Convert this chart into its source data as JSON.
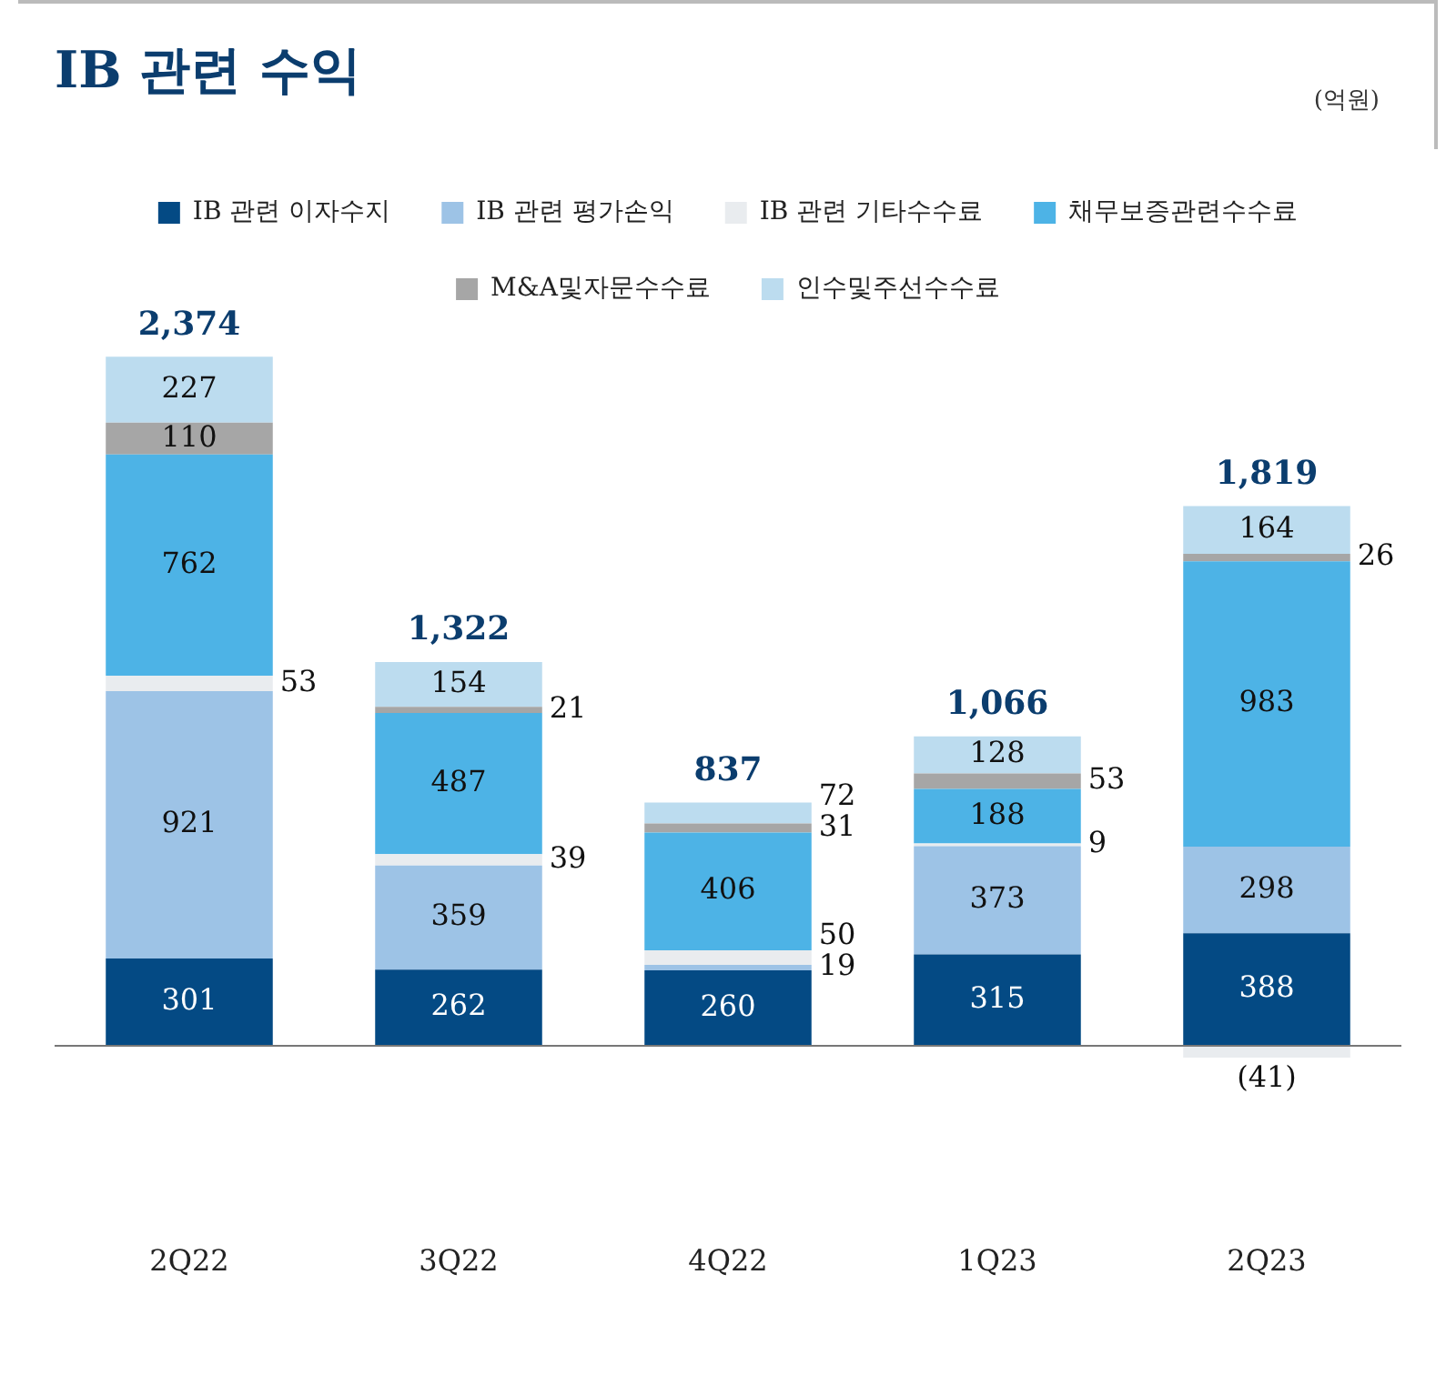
{
  "chart_data": {
    "type": "bar",
    "title": "IB 관련 수익",
    "annotations": [
      "(억원)"
    ],
    "categories": [
      "2Q22",
      "3Q22",
      "4Q22",
      "1Q23",
      "2Q23"
    ],
    "stacked": true,
    "legend": "top",
    "series": [
      {
        "name": "IB 관련 이자수지",
        "color": "#044a84",
        "values": [
          301,
          262,
          260,
          315,
          388
        ],
        "value_labels": [
          "301",
          "262",
          "260",
          "315",
          "388"
        ]
      },
      {
        "name": "IB 관련 평가손익",
        "color": "#9dc3e6",
        "values": [
          921,
          359,
          19,
          373,
          298
        ],
        "value_labels": [
          "921",
          "359",
          "19",
          "373",
          "298"
        ]
      },
      {
        "name": "IB 관련 기타수수료",
        "color": "#e9ecef",
        "values": [
          53,
          39,
          50,
          9,
          -41
        ],
        "value_labels": [
          "53",
          "39",
          "50",
          "9",
          "(41)"
        ]
      },
      {
        "name": "채무보증관련수수료",
        "color": "#4db3e6",
        "values": [
          762,
          487,
          406,
          188,
          983
        ],
        "value_labels": [
          "762",
          "487",
          "406",
          "188",
          "983"
        ]
      },
      {
        "name": "M&A및자문수수료",
        "color": "#a6a6a6",
        "values": [
          110,
          21,
          31,
          53,
          26
        ],
        "value_labels": [
          "110",
          "21",
          "31",
          "53",
          "26"
        ]
      },
      {
        "name": "인수및주선수수료",
        "color": "#bcdcef",
        "values": [
          227,
          154,
          72,
          128,
          164
        ],
        "value_labels": [
          "227",
          "154",
          "72",
          "128",
          "164"
        ]
      }
    ],
    "totals": [
      "2,374",
      "1,322",
      "837",
      "1,066",
      "1,819"
    ]
  }
}
